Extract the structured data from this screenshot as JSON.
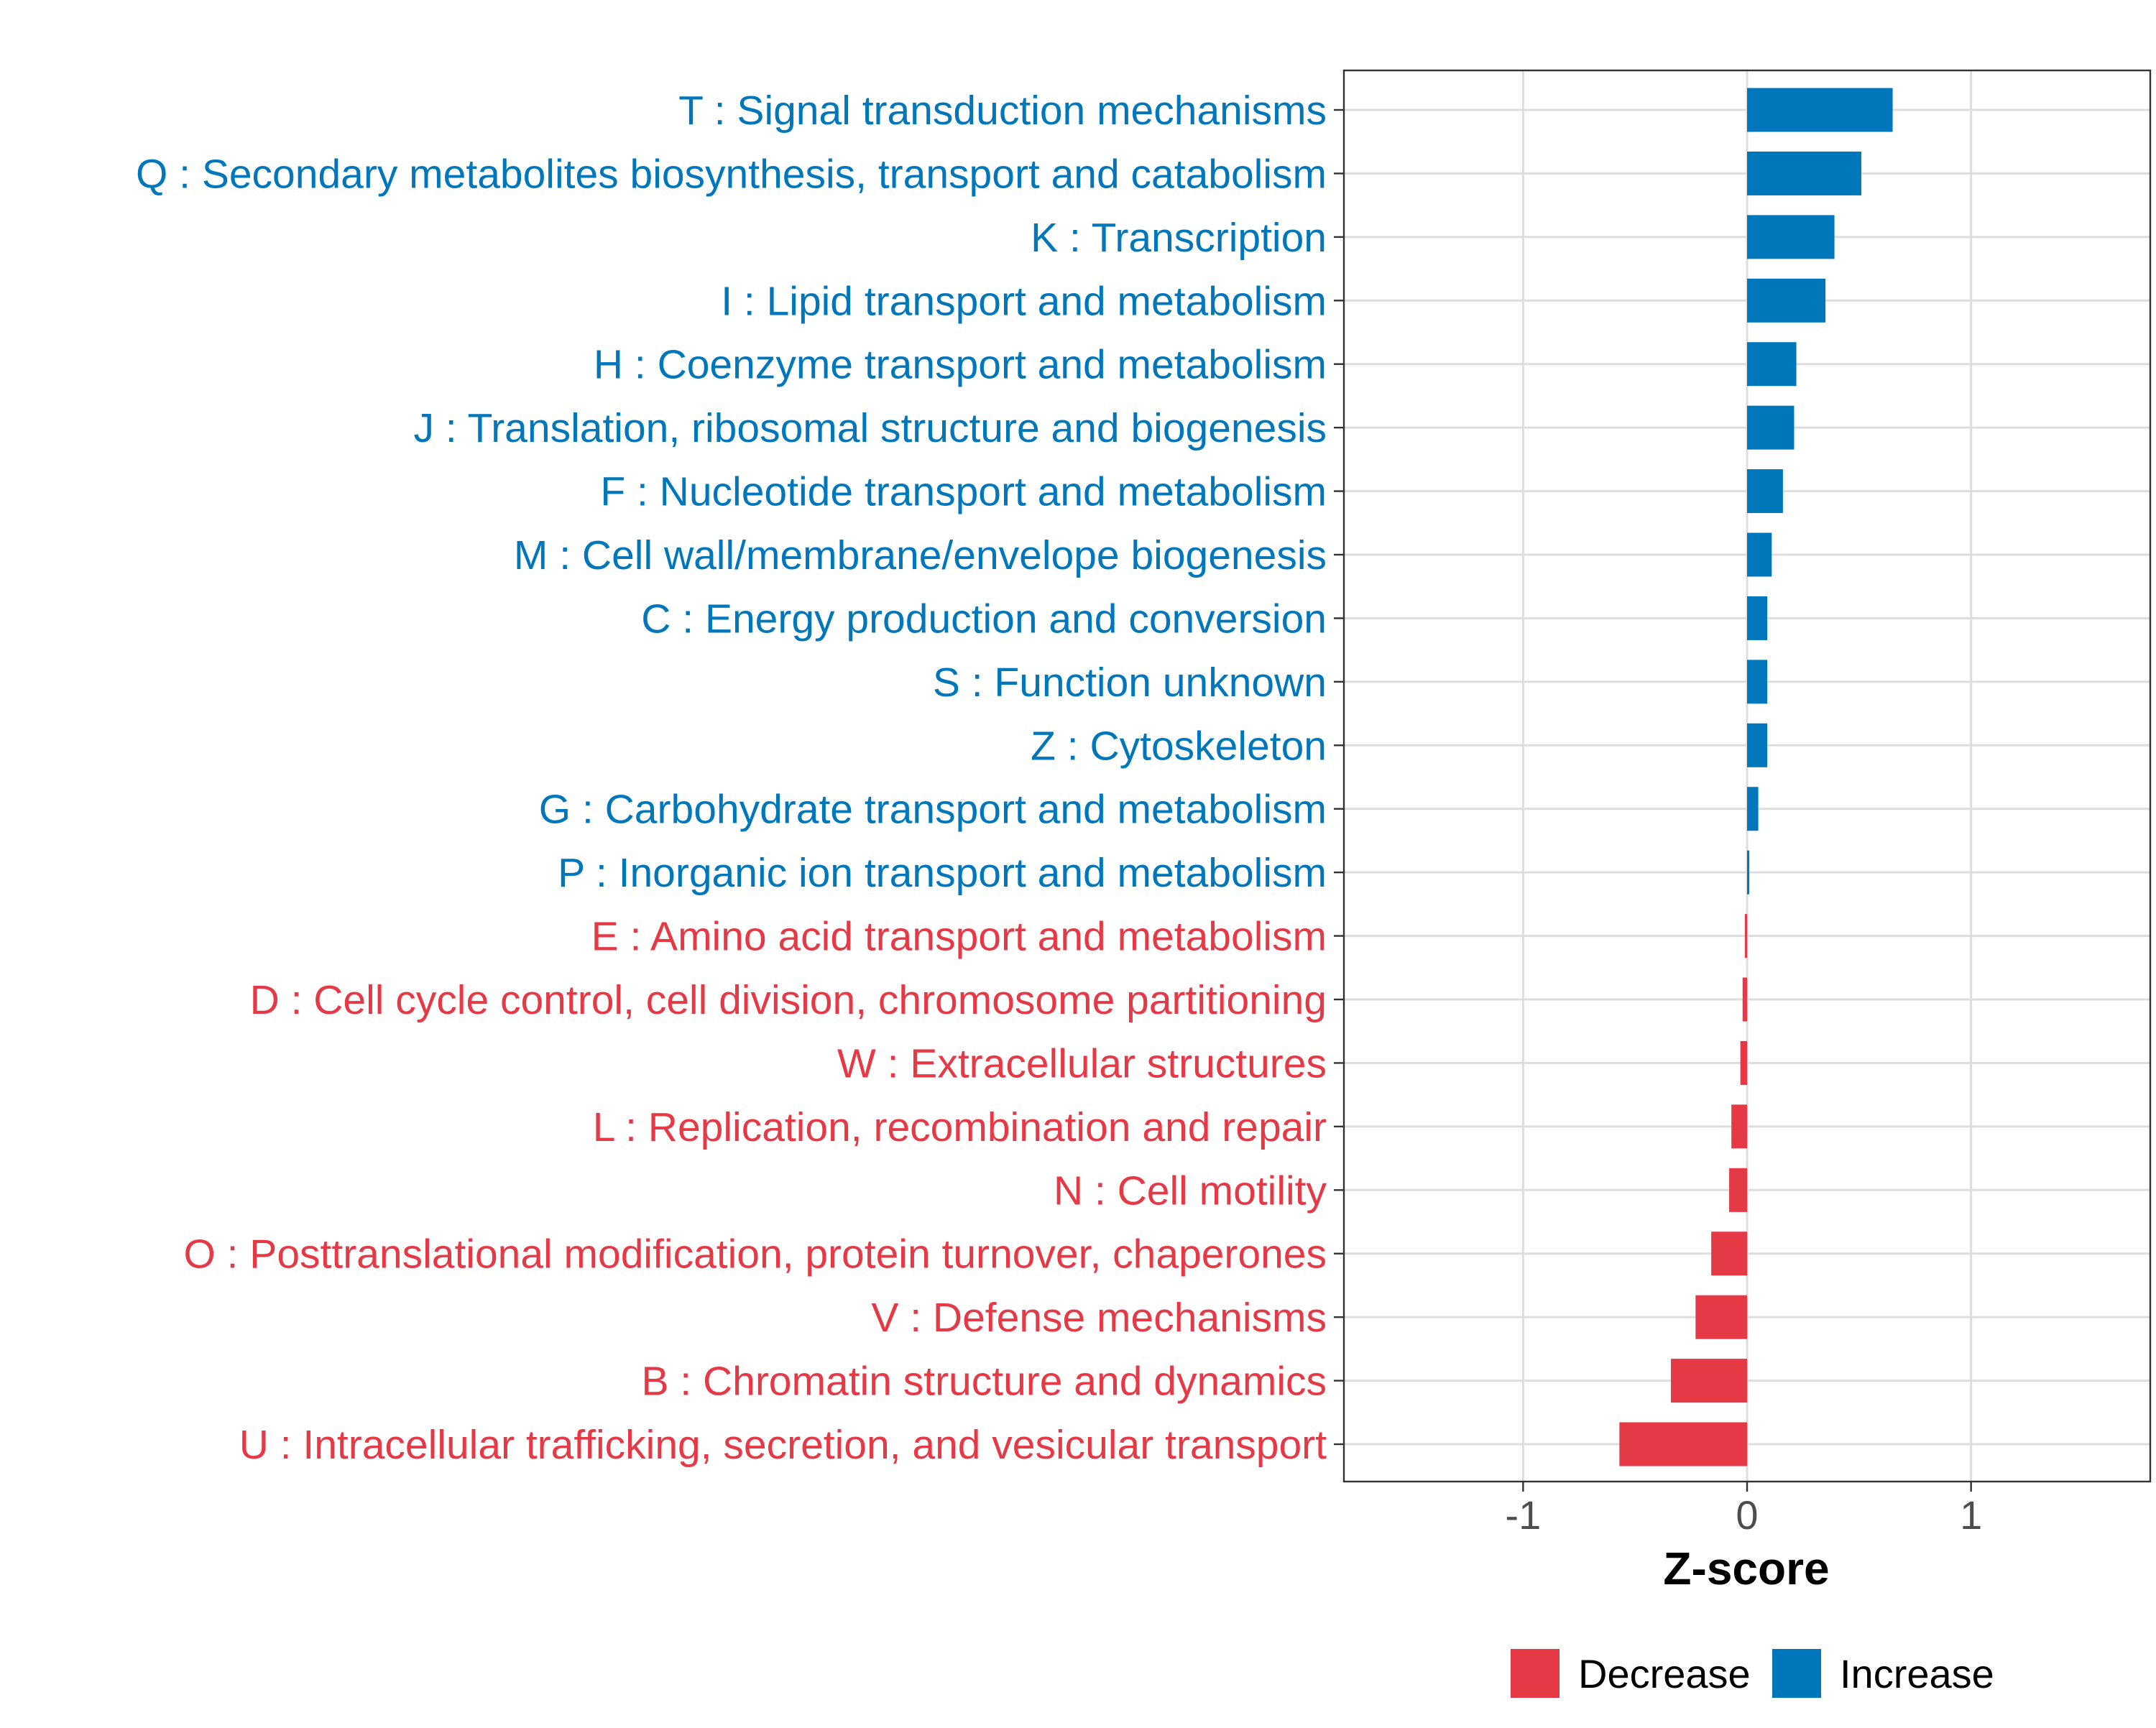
{
  "chart_data": {
    "type": "bar",
    "orientation": "horizontal",
    "xlabel": "Z-score",
    "ylabel": "",
    "xlim": [
      -1.8,
      1.8
    ],
    "xticks": [
      -1,
      0,
      1
    ],
    "xtick_labels": [
      "-1",
      "0",
      "1"
    ],
    "grid": true,
    "legend_position": "bottom",
    "colors": {
      "Decrease": "#E63946",
      "Increase": "#0077BB"
    },
    "legend": [
      {
        "label": "Decrease",
        "color": "#E63946"
      },
      {
        "label": "Increase",
        "color": "#0077BB"
      }
    ],
    "categories": [
      "T : Signal transduction mechanisms",
      "Q : Secondary metabolites biosynthesis, transport and catabolism",
      "K : Transcription",
      "I : Lipid transport and metabolism",
      "H : Coenzyme transport and metabolism",
      "J : Translation, ribosomal structure and biogenesis",
      "F : Nucleotide transport and metabolism",
      "M : Cell wall/membrane/envelope biogenesis",
      "C : Energy production and conversion",
      "S : Function unknown",
      "Z : Cytoskeleton",
      "G : Carbohydrate transport and metabolism",
      "P : Inorganic ion transport and metabolism",
      "E : Amino acid transport and metabolism",
      "D : Cell cycle control, cell division, chromosome partitioning",
      "W : Extracellular structures",
      "L : Replication, recombination and repair",
      "N : Cell motility",
      "O : Posttranslational modification, protein turnover, chaperones",
      "V : Defense mechanisms",
      "B : Chromatin structure and dynamics",
      "U : Intracellular trafficking, secretion, and vesicular transport"
    ],
    "values": [
      0.65,
      0.51,
      0.39,
      0.35,
      0.22,
      0.21,
      0.16,
      0.11,
      0.09,
      0.09,
      0.09,
      0.05,
      0.01,
      -0.01,
      -0.02,
      -0.03,
      -0.07,
      -0.08,
      -0.16,
      -0.23,
      -0.34,
      -0.57
    ],
    "groups": [
      "Increase",
      "Increase",
      "Increase",
      "Increase",
      "Increase",
      "Increase",
      "Increase",
      "Increase",
      "Increase",
      "Increase",
      "Increase",
      "Increase",
      "Increase",
      "Decrease",
      "Decrease",
      "Decrease",
      "Decrease",
      "Decrease",
      "Decrease",
      "Decrease",
      "Decrease",
      "Decrease"
    ]
  }
}
